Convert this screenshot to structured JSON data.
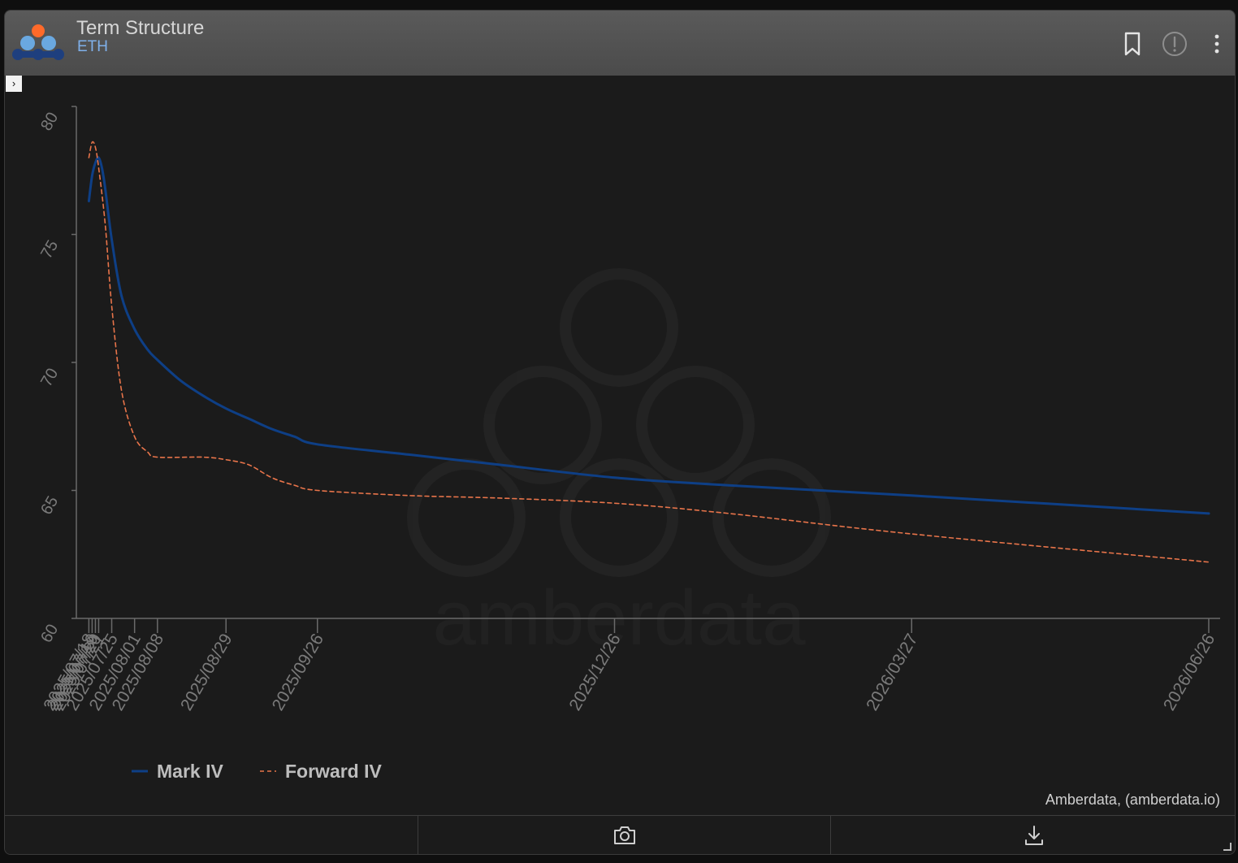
{
  "header": {
    "title": "Term Structure",
    "subtitle": "ETH",
    "icons": [
      "bookmark-icon",
      "alert-icon",
      "more-vertical-icon"
    ]
  },
  "watermark": "amberdata",
  "credit": "Amberdata, (amberdata.io)",
  "footer": {
    "icons": [
      "camera-icon",
      "download-icon"
    ]
  },
  "colors": {
    "mark_iv": "#0e3f86",
    "forward_iv": "#e8744a",
    "axis": "#6a6a6a",
    "tick": "#7a7a7a"
  },
  "chart_data": {
    "type": "line",
    "x_type": "date",
    "ylim": [
      60,
      80
    ],
    "y_ticks": [
      60,
      65,
      70,
      75,
      80
    ],
    "x_ticks": [
      "2025/07/18",
      "2025/07/19",
      "2025/07/20",
      "2025/07/21",
      "2025/07/25",
      "2025/08/01",
      "2025/08/08",
      "2025/08/29",
      "2025/09/26",
      "2025/12/26",
      "2026/03/27",
      "2026/06/26"
    ],
    "legend": "bottom-left",
    "series": [
      {
        "name": "Mark IV",
        "style": "solid",
        "points": [
          [
            "2025/07/18",
            76.3
          ],
          [
            "2025/07/19",
            77.3
          ],
          [
            "2025/07/20",
            77.8
          ],
          [
            "2025/07/21",
            78.0
          ],
          [
            "2025/07/22",
            77.6
          ],
          [
            "2025/07/23",
            76.8
          ],
          [
            "2025/07/25",
            74.8
          ],
          [
            "2025/07/28",
            72.6
          ],
          [
            "2025/08/01",
            71.3
          ],
          [
            "2025/08/05",
            70.5
          ],
          [
            "2025/08/08",
            70.1
          ],
          [
            "2025/08/15",
            69.3
          ],
          [
            "2025/08/22",
            68.7
          ],
          [
            "2025/08/29",
            68.2
          ],
          [
            "2025/09/05",
            67.8
          ],
          [
            "2025/09/12",
            67.4
          ],
          [
            "2025/09/19",
            67.1
          ],
          [
            "2025/09/26",
            66.8
          ],
          [
            "2025/10/24",
            66.4
          ],
          [
            "2025/11/21",
            66.0
          ],
          [
            "2025/12/26",
            65.5
          ],
          [
            "2026/01/30",
            65.2
          ],
          [
            "2026/03/27",
            64.8
          ],
          [
            "2026/06/26",
            64.1
          ]
        ]
      },
      {
        "name": "Forward IV",
        "style": "dashed",
        "points": [
          [
            "2025/07/18",
            78.0
          ],
          [
            "2025/07/19",
            78.6
          ],
          [
            "2025/07/20",
            78.4
          ],
          [
            "2025/07/21",
            77.6
          ],
          [
            "2025/07/23",
            75.4
          ],
          [
            "2025/07/25",
            72.2
          ],
          [
            "2025/07/28",
            68.9
          ],
          [
            "2025/08/01",
            67.1
          ],
          [
            "2025/08/05",
            66.5
          ],
          [
            "2025/08/08",
            66.3
          ],
          [
            "2025/08/22",
            66.3
          ],
          [
            "2025/08/29",
            66.2
          ],
          [
            "2025/09/05",
            66.0
          ],
          [
            "2025/09/12",
            65.5
          ],
          [
            "2025/09/19",
            65.2
          ],
          [
            "2025/09/26",
            65.0
          ],
          [
            "2025/10/24",
            64.8
          ],
          [
            "2025/11/21",
            64.7
          ],
          [
            "2025/12/26",
            64.5
          ],
          [
            "2026/01/30",
            64.1
          ],
          [
            "2026/03/27",
            63.3
          ],
          [
            "2026/06/26",
            62.2
          ]
        ]
      }
    ]
  }
}
